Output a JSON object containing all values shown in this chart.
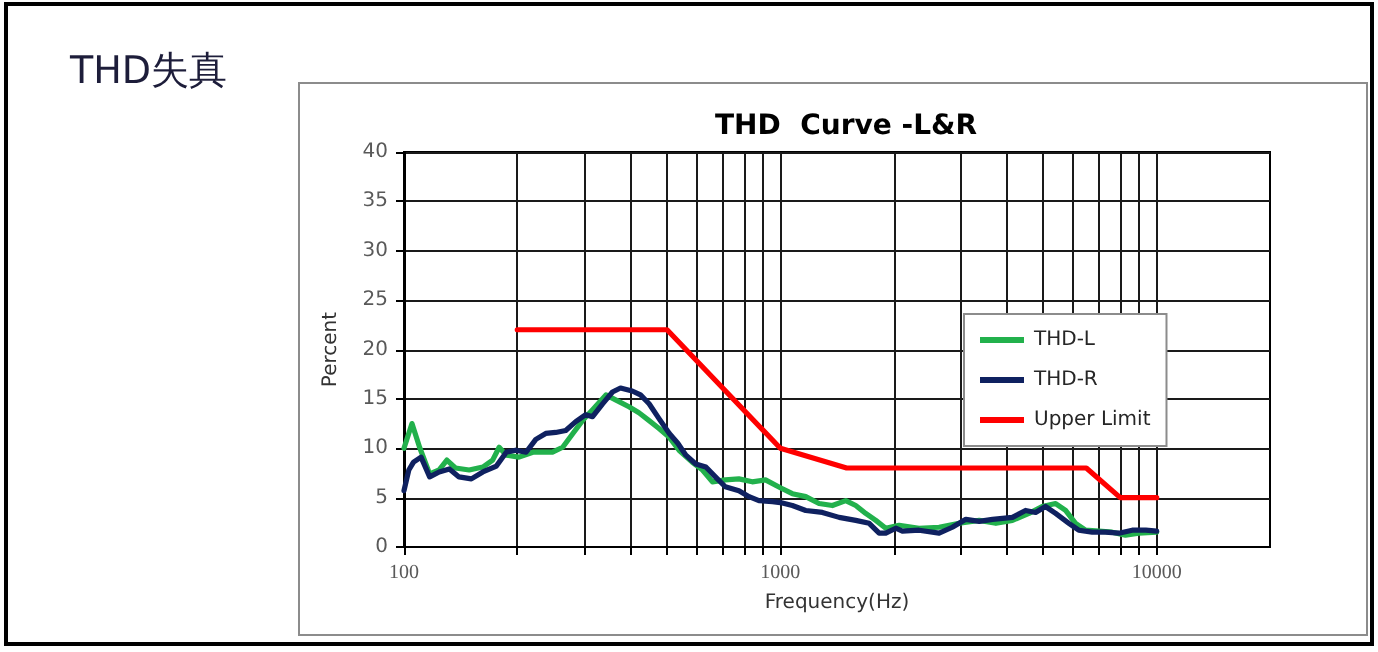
{
  "chart_data": {
    "type": "line",
    "title": "THD失真",
    "subtitle": "THD  Curve -L&R",
    "xlabel": "Frequency(Hz)",
    "ylabel": "Percent",
    "log": "x",
    "xlim": [
      100,
      20000
    ],
    "xticks": [
      100,
      {
        "value": 200,
        "label": null
      },
      {
        "value": 300,
        "label": null
      },
      {
        "value": 400,
        "label": null
      },
      {
        "value": 500,
        "label": null
      },
      {
        "value": 600,
        "label": null
      },
      {
        "value": 700,
        "label": null
      },
      {
        "value": 800,
        "label": null
      },
      {
        "value": 900,
        "label": null
      },
      1000,
      {
        "value": 2000,
        "label": null
      },
      {
        "value": 3000,
        "label": null
      },
      {
        "value": 4000,
        "label": null
      },
      {
        "value": 5000,
        "label": null
      },
      {
        "value": 6000,
        "label": null
      },
      {
        "value": 7000,
        "label": null
      },
      {
        "value": 8000,
        "label": null
      },
      {
        "value": 9000,
        "label": null
      },
      10000
    ],
    "ylim": [
      0,
      40
    ],
    "yticks": [
      0,
      5,
      10,
      15,
      20,
      25,
      30,
      35,
      40
    ],
    "grid": true,
    "legend": "right",
    "marker": "none",
    "line_style": "solid",
    "series": [
      {
        "name": "THD-L",
        "color": "#22b14c",
        "x": [
          100,
          105,
          110,
          117,
          124,
          130,
          137,
          149,
          162,
          172,
          179,
          187,
          202,
          220,
          248,
          264,
          281,
          298,
          317,
          344,
          365,
          396,
          421,
          448,
          476,
          507,
          538,
          583,
          621,
          660,
          714,
          776,
          842,
          913,
          1000,
          1076,
          1168,
          1267,
          1375,
          1492,
          1586,
          1686,
          1793,
          1906,
          2068,
          2336,
          2641,
          2986,
          3376,
          3739,
          4137,
          4576,
          4962,
          5388,
          5726,
          6086,
          6469,
          7018,
          7613,
          8258,
          8958,
          10000
        ],
        "values": [
          10.0,
          12.5,
          10.1,
          7.4,
          7.8,
          8.8,
          8.0,
          7.8,
          8.1,
          8.8,
          10.1,
          9.3,
          9.1,
          9.6,
          9.6,
          10.1,
          11.5,
          12.8,
          13.9,
          15.4,
          14.9,
          14.2,
          13.6,
          12.8,
          12.0,
          11.1,
          9.8,
          8.6,
          7.8,
          6.6,
          6.8,
          6.9,
          6.6,
          6.8,
          6.0,
          5.4,
          5.1,
          4.4,
          4.2,
          4.7,
          4.2,
          3.4,
          2.7,
          1.9,
          2.2,
          1.9,
          2.0,
          2.4,
          2.7,
          2.4,
          2.7,
          3.4,
          4.1,
          4.4,
          3.7,
          2.4,
          1.7,
          1.6,
          1.5,
          1.2,
          1.4,
          1.5
        ]
      },
      {
        "name": "THD-R",
        "color": "#0f2160",
        "x": [
          100,
          103,
          106,
          111,
          117,
          124,
          132,
          140,
          151,
          162,
          176,
          187,
          198,
          211,
          224,
          238,
          253,
          269,
          286,
          304,
          317,
          337,
          358,
          376,
          404,
          425,
          448,
          476,
          507,
          534,
          561,
          596,
          634,
          672,
          714,
          776,
          826,
          877,
          953,
          1000,
          1076,
          1168,
          1293,
          1433,
          1586,
          1722,
          1830,
          1906,
          2026,
          2110,
          2336,
          2641,
          2864,
          3111,
          3376,
          3662,
          4137,
          4482,
          4767,
          5063,
          5388,
          5844,
          6206,
          6740,
          7312,
          7933,
          8607,
          9358,
          10000
        ],
        "values": [
          5.7,
          7.8,
          8.6,
          9.1,
          7.1,
          7.6,
          7.9,
          7.1,
          6.9,
          7.6,
          8.2,
          9.6,
          9.8,
          9.6,
          10.9,
          11.5,
          11.6,
          11.8,
          12.7,
          13.4,
          13.2,
          14.5,
          15.7,
          16.1,
          15.8,
          15.4,
          14.5,
          13.0,
          11.5,
          10.5,
          9.3,
          8.4,
          8.1,
          7.1,
          6.1,
          5.7,
          5.1,
          4.7,
          4.6,
          4.5,
          4.2,
          3.7,
          3.5,
          3.0,
          2.7,
          2.4,
          1.4,
          1.4,
          1.9,
          1.6,
          1.7,
          1.4,
          2.0,
          2.8,
          2.6,
          2.8,
          3.0,
          3.7,
          3.5,
          4.1,
          3.4,
          2.4,
          1.7,
          1.5,
          1.5,
          1.4,
          1.7,
          1.7,
          1.6
        ]
      },
      {
        "name": "Upper Limit",
        "color": "#ff0000",
        "x": [
          200,
          500,
          1000,
          1500,
          6500,
          8000,
          10000
        ],
        "values": [
          22,
          22,
          10,
          8,
          8,
          5,
          5
        ]
      }
    ]
  }
}
